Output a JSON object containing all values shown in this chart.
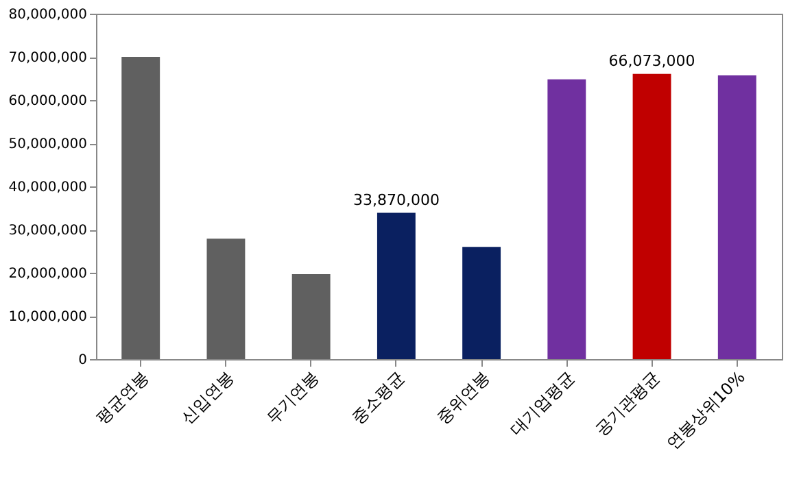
{
  "chart_data": {
    "type": "bar",
    "categories": [
      "평균연봉",
      "신입연봉",
      "무기연봉",
      "중소평균",
      "중위연봉",
      "대기업평균",
      "공기관평균",
      "연봉상위10%"
    ],
    "values": [
      70000000,
      27900000,
      19700000,
      33870000,
      26000000,
      64800000,
      66073000,
      65700000
    ],
    "colors": [
      "#606060",
      "#606060",
      "#606060",
      "#0a2060",
      "#0a2060",
      "#7030a0",
      "#c00000",
      "#7030a0"
    ],
    "value_labels": [
      null,
      null,
      null,
      "33,870,000",
      null,
      null,
      "66,073,000",
      null
    ],
    "ylim": [
      0,
      80000000
    ],
    "yticks": [
      0,
      {
        "value": 10000000,
        "label": "10,000,000"
      },
      {
        "value": 20000000,
        "label": "20,000,000"
      },
      {
        "value": 30000000,
        "label": "30,000,000"
      },
      {
        "value": 40000000,
        "label": "40,000,000"
      },
      {
        "value": 50000000,
        "label": "50,000,000"
      },
      {
        "value": 60000000,
        "label": "60,000,000"
      },
      {
        "value": 70000000,
        "label": "70,000,000"
      },
      {
        "value": 80000000,
        "label": "80,000,000"
      }
    ],
    "grid": false
  }
}
